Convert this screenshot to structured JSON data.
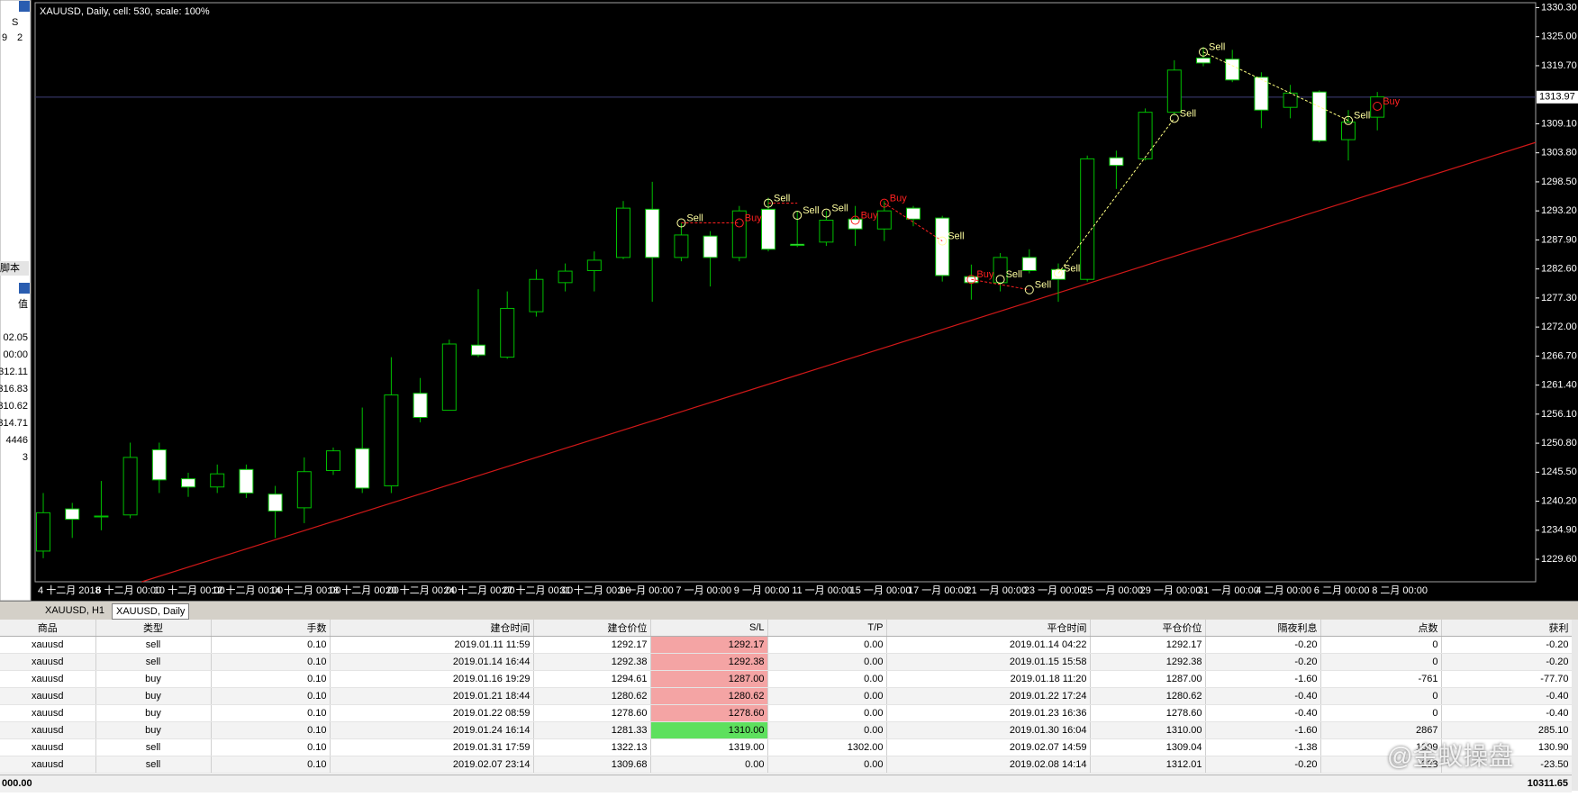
{
  "chart_data": {
    "type": "candlestick",
    "title": "XAUUSD, Daily, cell: 530, scale: 100%",
    "categories": [
      "4 十二月 2018",
      null,
      "6 十二月 00:00",
      null,
      "10 十二月 00:00",
      null,
      "12 十二月 00:00",
      null,
      "14 十二月 00:00",
      null,
      "18 十二月 00:00",
      null,
      "20 十二月 00:00",
      null,
      "24 十二月 00:00",
      null,
      "27 十二月 00:00",
      null,
      "31 十二月 00:00",
      null,
      "3 一月 00:00",
      null,
      "7 一月 00:00",
      null,
      "9 一月 00:00",
      null,
      "11 一月 00:00",
      null,
      "15 一月 00:00",
      null,
      "17 一月 00:00",
      null,
      "21 一月 00:00",
      null,
      "23 一月 00:00",
      null,
      "25 一月 00:00",
      null,
      "29 一月 00:00",
      null,
      "31 一月 00:00",
      null,
      "4 二月 00:00",
      null,
      "6 二月 00:00",
      null,
      "8 二月 00:00"
    ],
    "open": [
      1231.1,
      1238.8,
      1237.5,
      1237.7,
      1249.6,
      1244.3,
      1242.8,
      1246.0,
      1241.5,
      1239.0,
      1245.8,
      1249.8,
      1243.0,
      1259.9,
      1256.8,
      1268.7,
      1266.5,
      1274.8,
      1280.1,
      1282.3,
      1284.7,
      1293.5,
      1284.7,
      1288.6,
      1284.7,
      1293.5,
      1287.1,
      1287.5,
      1291.7,
      1289.9,
      1293.7,
      1291.9,
      1281.2,
      1280.1,
      1284.7,
      1282.5,
      1280.7,
      1302.9,
      1302.7,
      1311.2,
      1321.1,
      1320.9,
      1317.6,
      1312.1,
      1314.9,
      1306.2,
      1310.3
    ],
    "high": [
      1241.7,
      1239.9,
      1243.9,
      1250.9,
      1250.9,
      1245.4,
      1246.9,
      1246.9,
      1243.0,
      1248.2,
      1250.0,
      1257.3,
      1266.5,
      1262.7,
      1269.7,
      1278.9,
      1278.5,
      1282.5,
      1283.6,
      1285.8,
      1295.0,
      1298.5,
      1291.0,
      1289.5,
      1294.1,
      1295.6,
      1293.2,
      1293.2,
      1294.1,
      1295.0,
      1294.1,
      1292.3,
      1283.4,
      1285.5,
      1286.2,
      1283.6,
      1303.3,
      1304.2,
      1311.9,
      1320.7,
      1323.1,
      1322.6,
      1318.5,
      1316.2,
      1315.2,
      1311.6,
      1314.9
    ],
    "low": [
      1229.8,
      1233.5,
      1234.9,
      1237.1,
      1241.7,
      1241.0,
      1241.7,
      1240.8,
      1233.5,
      1236.2,
      1245.0,
      1241.7,
      1241.7,
      1254.6,
      1256.8,
      1266.5,
      1266.2,
      1273.9,
      1278.5,
      1278.5,
      1284.4,
      1276.6,
      1284.0,
      1279.4,
      1284.0,
      1285.8,
      1286.6,
      1286.8,
      1286.8,
      1287.7,
      1290.4,
      1280.3,
      1277.0,
      1278.5,
      1281.8,
      1276.6,
      1280.3,
      1297.2,
      1302.4,
      1310.6,
      1319.6,
      1316.7,
      1308.3,
      1310.1,
      1305.7,
      1302.4,
      1307.9
    ],
    "close": [
      1238.1,
      1236.9,
      1237.5,
      1248.2,
      1244.1,
      1242.8,
      1245.2,
      1241.7,
      1238.4,
      1245.6,
      1249.4,
      1242.6,
      1259.6,
      1255.5,
      1268.9,
      1266.9,
      1275.4,
      1280.7,
      1282.2,
      1284.2,
      1293.7,
      1284.7,
      1288.8,
      1284.7,
      1293.2,
      1286.2,
      1286.9,
      1291.5,
      1289.9,
      1293.2,
      1291.7,
      1281.4,
      1280.1,
      1284.7,
      1282.3,
      1280.7,
      1302.7,
      1301.5,
      1311.2,
      1318.9,
      1320.2,
      1317.1,
      1311.6,
      1314.7,
      1306.0,
      1309.4,
      1314.0
    ],
    "bull_color": "#000000",
    "bear_color": "#ffffff",
    "wick_color": "#00c000",
    "xlim": [
      -0.28,
      51.46
    ],
    "ylim": [
      1225.5,
      1331.2
    ],
    "yticks": [
      {
        "value": 1330.3,
        "label": "1330.30"
      },
      {
        "value": 1325,
        "label": "1325.00"
      },
      {
        "value": 1319.7,
        "label": "1319.70"
      },
      {
        "value": 1309.1,
        "label": "1309.10"
      },
      {
        "value": 1303.8,
        "label": "1303.80"
      },
      {
        "value": 1298.5,
        "label": "1298.50"
      },
      {
        "value": 1293.2,
        "label": "1293.20"
      },
      {
        "value": 1287.9,
        "label": "1287.90"
      },
      {
        "value": 1282.6,
        "label": "1282.60"
      },
      {
        "value": 1277.3,
        "label": "1277.30"
      },
      {
        "value": 1272,
        "label": "1272.00"
      },
      {
        "value": 1266.7,
        "label": "1266.70"
      },
      {
        "value": 1261.4,
        "label": "1261.40"
      },
      {
        "value": 1256.1,
        "label": "1256.10"
      },
      {
        "value": 1250.8,
        "label": "1250.80"
      },
      {
        "value": 1245.5,
        "label": "1245.50"
      },
      {
        "value": 1240.2,
        "label": "1240.20"
      },
      {
        "value": 1234.9,
        "label": "1234.90"
      },
      {
        "value": 1229.6,
        "label": "1229.60"
      }
    ],
    "current_price": 1313.97,
    "trendline": {
      "x": [
        3.4,
        51.46
      ],
      "y": [
        1225.5,
        1305.7
      ],
      "color": "#d01818"
    },
    "trade_lines": [
      {
        "color": "#ff2020",
        "x": [
          22,
          24
        ],
        "y": [
          1291.0,
          1291.0
        ]
      },
      {
        "color": "#ff2020",
        "x": [
          25,
          26
        ],
        "y": [
          1294.6,
          1294.6
        ]
      },
      {
        "color": "#ff2020",
        "x": [
          29,
          31
        ],
        "y": [
          1294.6,
          1287.7
        ]
      },
      {
        "color": "#ff2020",
        "x": [
          32,
          34
        ],
        "y": [
          1280.7,
          1278.8
        ]
      },
      {
        "color": "#ffff80",
        "x": [
          35,
          39
        ],
        "y": [
          1281.8,
          1310.1
        ]
      },
      {
        "color": "#ffff80",
        "x": [
          40,
          45
        ],
        "y": [
          1322.2,
          1309.7
        ]
      }
    ],
    "markers": [
      {
        "x": 22,
        "y": 1291.0,
        "label": "Sell",
        "color": "#ffffa0"
      },
      {
        "x": 24,
        "y": 1291.0,
        "label": "Buy",
        "color": "#ff2020"
      },
      {
        "x": 25,
        "y": 1294.6,
        "label": "Sell",
        "color": "#ffffa0"
      },
      {
        "x": 26,
        "y": 1292.4,
        "label": "Sell",
        "color": "#ffffa0"
      },
      {
        "x": 27,
        "y": 1292.8,
        "label": "Sell",
        "color": "#ffffa0"
      },
      {
        "x": 28,
        "y": 1291.5,
        "label": "Buy",
        "color": "#ff2020"
      },
      {
        "x": 29,
        "y": 1294.6,
        "label": "Buy",
        "color": "#ff2020"
      },
      {
        "x": 31,
        "y": 1287.7,
        "label": "Sell",
        "color": "#ffffa0"
      },
      {
        "x": 32,
        "y": 1280.7,
        "label": "Buy",
        "color": "#ff2020"
      },
      {
        "x": 33,
        "y": 1280.7,
        "label": "Sell",
        "color": "#ffffa0"
      },
      {
        "x": 34,
        "y": 1278.8,
        "label": "Sell",
        "color": "#ffffa0"
      },
      {
        "x": 35,
        "y": 1281.8,
        "label": "Sell",
        "color": "#ffffa0"
      },
      {
        "x": 39,
        "y": 1310.1,
        "label": "Sell",
        "color": "#ffffa0"
      },
      {
        "x": 40,
        "y": 1322.2,
        "label": "Sell",
        "color": "#ffffa0"
      },
      {
        "x": 45,
        "y": 1309.7,
        "label": "Sell",
        "color": "#ffffa0"
      },
      {
        "x": 46,
        "y": 1312.3,
        "label": "Buy",
        "color": "#ff2020"
      }
    ]
  },
  "left_panel": {
    "header": "S",
    "row": [
      "9",
      "2"
    ],
    "tab": "脚本",
    "column": "值",
    "values": [
      "02.05",
      "00:00",
      "312.11",
      "316.83",
      "310.62",
      "314.71",
      "4446",
      "3"
    ]
  },
  "tabs": [
    "XAUUSD, H1",
    "XAUUSD, Daily"
  ],
  "table": {
    "headers": [
      "商品",
      "类型",
      "手数",
      "建仓时间",
      "建仓价位",
      "S/L",
      "T/P",
      "平仓时间",
      "平仓价位",
      "隔夜利息",
      "点数",
      "获利"
    ],
    "rows": [
      [
        "xauusd",
        "sell",
        "0.10",
        "2019.01.11 11:59",
        "1292.17",
        "1292.17",
        "0.00",
        "2019.01.14 04:22",
        "1292.17",
        "-0.20",
        "0",
        "-0.20"
      ],
      [
        "xauusd",
        "sell",
        "0.10",
        "2019.01.14 16:44",
        "1292.38",
        "1292.38",
        "0.00",
        "2019.01.15 15:58",
        "1292.38",
        "-0.20",
        "0",
        "-0.20"
      ],
      [
        "xauusd",
        "buy",
        "0.10",
        "2019.01.16 19:29",
        "1294.61",
        "1287.00",
        "0.00",
        "2019.01.18 11:20",
        "1287.00",
        "-1.60",
        "-761",
        "-77.70"
      ],
      [
        "xauusd",
        "buy",
        "0.10",
        "2019.01.21 18:44",
        "1280.62",
        "1280.62",
        "0.00",
        "2019.01.22 17:24",
        "1280.62",
        "-0.40",
        "0",
        "-0.40"
      ],
      [
        "xauusd",
        "buy",
        "0.10",
        "2019.01.22 08:59",
        "1278.60",
        "1278.60",
        "0.00",
        "2019.01.23 16:36",
        "1278.60",
        "-0.40",
        "0",
        "-0.40"
      ],
      [
        "xauusd",
        "buy",
        "0.10",
        "2019.01.24 16:14",
        "1281.33",
        "1310.00",
        "0.00",
        "2019.01.30 16:04",
        "1310.00",
        "-1.60",
        "2867",
        "285.10"
      ],
      [
        "xauusd",
        "sell",
        "0.10",
        "2019.01.31 17:59",
        "1322.13",
        "1319.00",
        "1302.00",
        "2019.02.07 14:59",
        "1309.04",
        "-1.38",
        "1309",
        "130.90"
      ],
      [
        "xauusd",
        "sell",
        "0.10",
        "2019.02.07 23:14",
        "1309.68",
        "0.00",
        "0.00",
        "2019.02.08 14:14",
        "1312.01",
        "-0.20",
        "-233",
        "-23.50"
      ]
    ],
    "sl_backgrounds": [
      "#f4a4a4",
      "#f4a4a4",
      "#f4a4a4",
      "#f4a4a4",
      "#f4a4a4",
      "#5ee05e",
      null,
      null
    ],
    "footer": [
      "000.00",
      "10311.65"
    ]
  },
  "watermark": "@金蚁操盘"
}
